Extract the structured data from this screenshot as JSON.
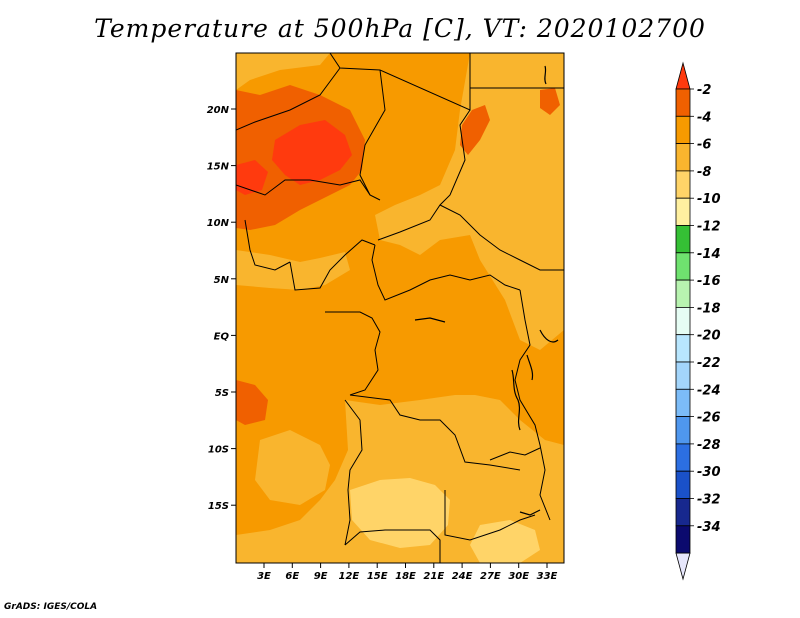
{
  "title": "Temperature at 500hPa [C], VT: 2020102700",
  "credit": "GrADS: IGES/COLA",
  "map": {
    "lat_ticks": [
      "20N",
      "15N",
      "10N",
      "5N",
      "EQ",
      "5S",
      "10S",
      "15S"
    ],
    "lon_ticks": [
      "3E",
      "6E",
      "9E",
      "12E",
      "15E",
      "18E",
      "21E",
      "24E",
      "27E",
      "30E",
      "33E"
    ],
    "lon_range": [
      0,
      35
    ],
    "lat_range": [
      -20,
      25
    ]
  },
  "colorbar": {
    "labels": [
      "-2",
      "-4",
      "-6",
      "-8",
      "-10",
      "-12",
      "-14",
      "-16",
      "-18",
      "-20",
      "-22",
      "-24",
      "-26",
      "-28",
      "-30",
      "-32",
      "-34"
    ],
    "colors": [
      "#ff3a0e",
      "#f06000",
      "#f79a00",
      "#f9b52e",
      "#ffd468",
      "#fff0a0",
      "#35c035",
      "#6fe26f",
      "#b8f3b0",
      "#e6fdf4",
      "#b8e6fe",
      "#a3d5fb",
      "#7cbcf8",
      "#4f97ee",
      "#2c6fe2",
      "#1a51c9",
      "#17288e",
      "#0b0a6e",
      "#e6e6fb"
    ]
  },
  "fields": {
    "background": "#f79a00",
    "warm_core": "#ff3a0e",
    "mid_warm": "#f06000",
    "cool_1": "#f9b52e",
    "cool_2": "#ffd468"
  }
}
